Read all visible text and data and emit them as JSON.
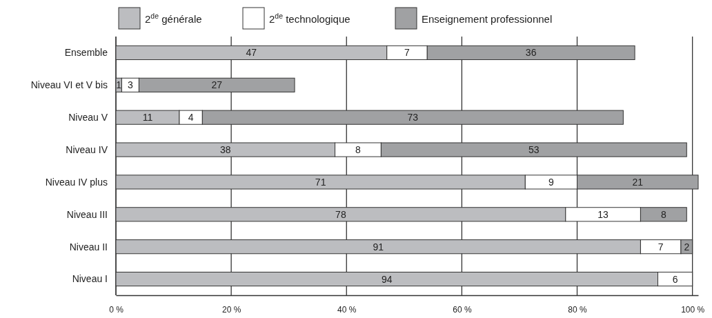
{
  "chart_data": {
    "type": "bar",
    "orientation": "horizontal",
    "stacked": true,
    "categories": [
      "Ensemble",
      "Niveau VI et V bis",
      "Niveau V",
      "Niveau IV",
      "Niveau IV plus",
      "Niveau III",
      "Niveau II",
      "Niveau I"
    ],
    "series": [
      {
        "name": "2$^{de}$ générale",
        "color": "#bcbdc0",
        "values": [
          47,
          1,
          11,
          38,
          71,
          78,
          91,
          94
        ]
      },
      {
        "name": "2$^{de}$ technologique",
        "color": "#ffffff",
        "values": [
          7,
          3,
          4,
          8,
          9,
          13,
          7,
          6
        ]
      },
      {
        "name": "Enseignement professionnel",
        "color": "#a0a1a3",
        "values": [
          36,
          27,
          73,
          53,
          21,
          8,
          2,
          null
        ]
      }
    ],
    "xlim": [
      0,
      101
    ],
    "xticks": [
      {
        "value": 0,
        "label": "0 %"
      },
      {
        "value": 20,
        "label": "20 %"
      },
      {
        "value": 40,
        "label": "40 %"
      },
      {
        "value": 60,
        "label": "60 %"
      },
      {
        "value": 80,
        "label": "80 %"
      },
      {
        "value": 100,
        "label": "100 %"
      }
    ],
    "grid": "x",
    "legend": "top",
    "data_labels": true
  }
}
